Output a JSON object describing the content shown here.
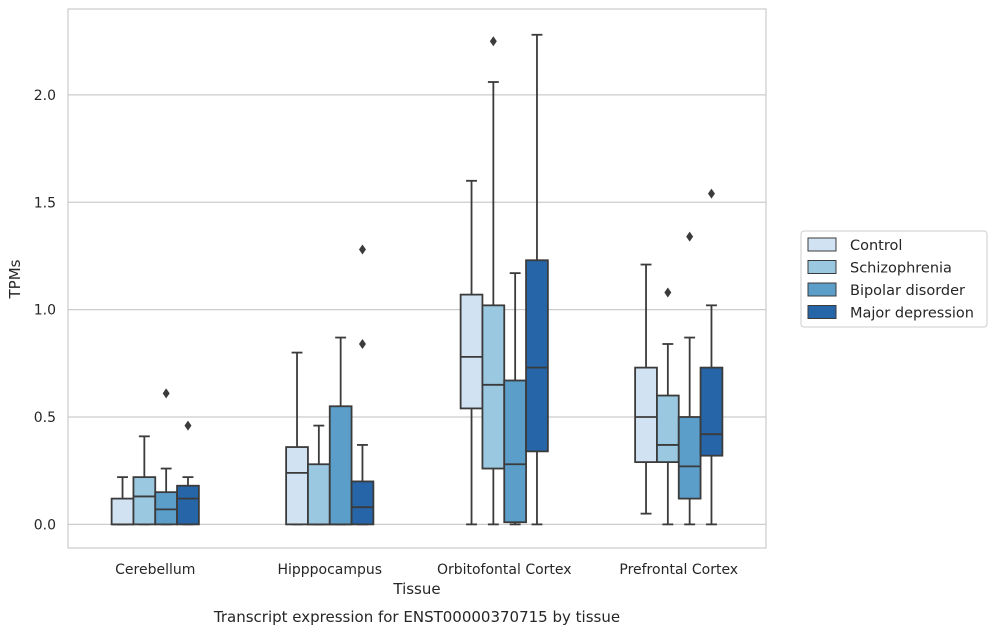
{
  "chart_data": {
    "type": "box",
    "title": "",
    "caption": "Transcript expression for ENST00000370715 by tissue",
    "xlabel": "Tissue",
    "ylabel": "TPMs",
    "ylim": [
      -0.11,
      2.4
    ],
    "yticks": [
      0.0,
      0.5,
      1.0,
      1.5,
      2.0
    ],
    "ytick_labels": [
      "0.0",
      "0.5",
      "1.0",
      "1.5",
      "2.0"
    ],
    "grid": "horizontal",
    "legend_position": "right",
    "categories": [
      "Cerebellum",
      "Hipppocampus",
      "Orbitofontal Cortex",
      "Prefrontal Cortex"
    ],
    "series": [
      {
        "name": "Control",
        "color": "#d1e2f3",
        "boxes": [
          {
            "whislo": 0.0,
            "q1": 0.0,
            "med": 0.0,
            "q3": 0.12,
            "whishi": 0.22,
            "fliers": []
          },
          {
            "whislo": 0.0,
            "q1": 0.0,
            "med": 0.24,
            "q3": 0.36,
            "whishi": 0.8,
            "fliers": []
          },
          {
            "whislo": 0.0,
            "q1": 0.54,
            "med": 0.78,
            "q3": 1.07,
            "whishi": 1.6,
            "fliers": []
          },
          {
            "whislo": 0.05,
            "q1": 0.29,
            "med": 0.5,
            "q3": 0.73,
            "whishi": 1.21,
            "fliers": []
          }
        ]
      },
      {
        "name": "Schizophrenia",
        "color": "#9ac8e0",
        "boxes": [
          {
            "whislo": 0.0,
            "q1": 0.0,
            "med": 0.13,
            "q3": 0.22,
            "whishi": 0.41,
            "fliers": []
          },
          {
            "whislo": 0.0,
            "q1": 0.0,
            "med": 0.0,
            "q3": 0.28,
            "whishi": 0.46,
            "fliers": []
          },
          {
            "whislo": 0.0,
            "q1": 0.26,
            "med": 0.65,
            "q3": 1.02,
            "whishi": 2.06,
            "fliers": [
              2.25
            ]
          },
          {
            "whislo": 0.0,
            "q1": 0.29,
            "med": 0.37,
            "q3": 0.6,
            "whishi": 0.84,
            "fliers": [
              1.08
            ]
          }
        ]
      },
      {
        "name": "Bipolar disorder",
        "color": "#5a9ec9",
        "boxes": [
          {
            "whislo": 0.0,
            "q1": 0.0,
            "med": 0.07,
            "q3": 0.15,
            "whishi": 0.26,
            "fliers": [
              0.61
            ]
          },
          {
            "whislo": 0.0,
            "q1": 0.0,
            "med": 0.0,
            "q3": 0.55,
            "whishi": 0.87,
            "fliers": []
          },
          {
            "whislo": 0.0,
            "q1": 0.01,
            "med": 0.28,
            "q3": 0.67,
            "whishi": 1.17,
            "fliers": []
          },
          {
            "whislo": 0.0,
            "q1": 0.12,
            "med": 0.27,
            "q3": 0.5,
            "whishi": 0.87,
            "fliers": [
              1.34
            ]
          }
        ]
      },
      {
        "name": "Major depression",
        "color": "#2565a8",
        "boxes": [
          {
            "whislo": 0.0,
            "q1": 0.0,
            "med": 0.12,
            "q3": 0.18,
            "whishi": 0.22,
            "fliers": [
              0.46
            ]
          },
          {
            "whislo": 0.0,
            "q1": 0.0,
            "med": 0.08,
            "q3": 0.2,
            "whishi": 0.37,
            "fliers": [
              0.84,
              1.28
            ]
          },
          {
            "whislo": 0.0,
            "q1": 0.34,
            "med": 0.73,
            "q3": 1.23,
            "whishi": 2.28,
            "fliers": []
          },
          {
            "whislo": 0.0,
            "q1": 0.32,
            "med": 0.42,
            "q3": 0.73,
            "whishi": 1.02,
            "fliers": [
              1.54
            ]
          }
        ]
      }
    ]
  }
}
